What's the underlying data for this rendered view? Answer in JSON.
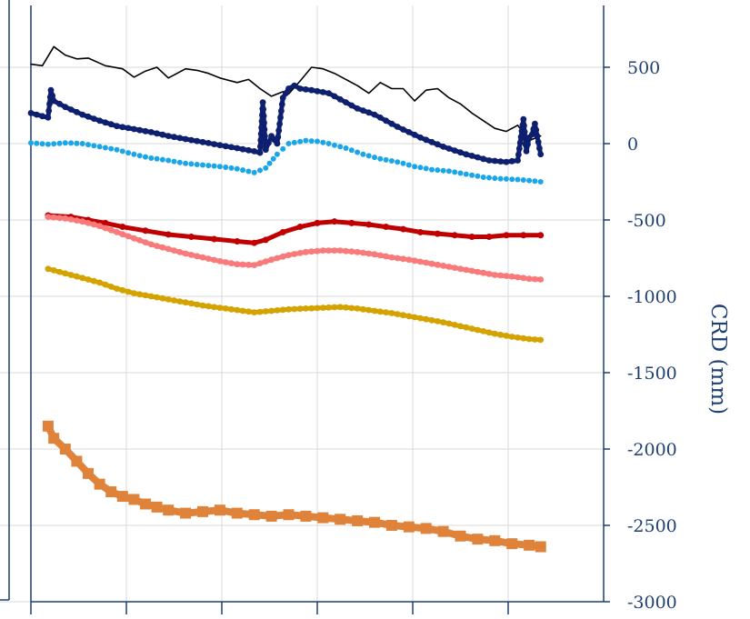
{
  "chart_data": {
    "type": "line",
    "title": "",
    "xlabel": "",
    "ylabel": "CRD (mm)",
    "ylim": [
      -3000,
      900
    ],
    "y_axis_side": "right",
    "y_ticks": [
      500,
      0,
      -500,
      -1000,
      -1500,
      -2000,
      -2500,
      -3000
    ],
    "y_tick_labels": [
      "500",
      "0",
      "-500",
      "-1000",
      "-1500",
      "-2000",
      "-2500",
      "-3000"
    ],
    "x_range": [
      0,
      1
    ],
    "x_ticks": [
      0,
      0.1667,
      0.3333,
      0.5,
      0.6667,
      0.8333
    ],
    "grid": true,
    "legend": "none",
    "series": [
      {
        "color": "#000000",
        "style": "thin-line",
        "x": [
          0,
          0.02,
          0.04,
          0.06,
          0.08,
          0.1,
          0.13,
          0.16,
          0.18,
          0.2,
          0.22,
          0.24,
          0.27,
          0.29,
          0.31,
          0.33,
          0.36,
          0.38,
          0.4,
          0.42,
          0.44,
          0.45,
          0.47,
          0.49,
          0.51,
          0.53,
          0.55,
          0.57,
          0.59,
          0.61,
          0.63,
          0.65,
          0.67,
          0.69,
          0.71,
          0.73,
          0.75,
          0.77,
          0.79,
          0.81,
          0.83,
          0.85,
          0.87,
          0.89
        ],
        "y": [
          520,
          510,
          635,
          580,
          555,
          560,
          510,
          490,
          435,
          475,
          500,
          430,
          490,
          480,
          460,
          430,
          400,
          420,
          360,
          310,
          340,
          325,
          410,
          500,
          490,
          460,
          420,
          380,
          330,
          400,
          360,
          360,
          280,
          350,
          360,
          300,
          260,
          200,
          150,
          100,
          80,
          120,
          20,
          50
        ]
      },
      {
        "color": "#0d1f6e",
        "style": "thick-dots",
        "x": [
          0,
          0.03,
          0.035,
          0.04,
          0.06,
          0.09,
          0.12,
          0.15,
          0.18,
          0.21,
          0.24,
          0.27,
          0.3,
          0.33,
          0.36,
          0.39,
          0.4,
          0.405,
          0.41,
          0.42,
          0.43,
          0.44,
          0.45,
          0.46,
          0.47,
          0.49,
          0.52,
          0.55,
          0.57,
          0.6,
          0.64,
          0.68,
          0.72,
          0.76,
          0.8,
          0.83,
          0.85,
          0.86,
          0.865,
          0.87,
          0.875,
          0.88,
          0.89
        ],
        "y": [
          200,
          170,
          350,
          280,
          240,
          190,
          150,
          115,
          95,
          75,
          50,
          30,
          10,
          -10,
          -30,
          -50,
          -60,
          270,
          -40,
          50,
          0,
          300,
          360,
          380,
          360,
          350,
          330,
          270,
          230,
          190,
          110,
          40,
          -20,
          -70,
          -110,
          -120,
          -110,
          160,
          -50,
          40,
          60,
          130,
          -70
        ]
      },
      {
        "color": "#1aa6e8",
        "style": "dots",
        "x": [
          0,
          0.03,
          0.06,
          0.09,
          0.12,
          0.15,
          0.18,
          0.21,
          0.24,
          0.27,
          0.3,
          0.33,
          0.36,
          0.39,
          0.41,
          0.43,
          0.45,
          0.48,
          0.5,
          0.52,
          0.55,
          0.58,
          0.61,
          0.64,
          0.67,
          0.7,
          0.73,
          0.76,
          0.79,
          0.82,
          0.85,
          0.88,
          0.89
        ],
        "y": [
          5,
          -5,
          5,
          0,
          -20,
          -40,
          -70,
          -95,
          -110,
          -130,
          -140,
          -150,
          -165,
          -190,
          -160,
          -70,
          0,
          20,
          15,
          0,
          -30,
          -70,
          -100,
          -120,
          -150,
          -170,
          -180,
          -200,
          -220,
          -230,
          -235,
          -245,
          -250
        ]
      },
      {
        "color": "#c00000",
        "style": "thick-jagged",
        "x": [
          0.03,
          0.07,
          0.1,
          0.13,
          0.16,
          0.2,
          0.24,
          0.28,
          0.32,
          0.36,
          0.39,
          0.41,
          0.44,
          0.47,
          0.5,
          0.53,
          0.56,
          0.59,
          0.62,
          0.65,
          0.68,
          0.71,
          0.74,
          0.77,
          0.8,
          0.83,
          0.86,
          0.89
        ],
        "y": [
          -470,
          -480,
          -500,
          -520,
          -545,
          -570,
          -595,
          -610,
          -625,
          -640,
          -650,
          -630,
          -580,
          -545,
          -520,
          -510,
          -520,
          -530,
          -545,
          -560,
          -580,
          -590,
          -600,
          -610,
          -610,
          -600,
          -600,
          -600
        ]
      },
      {
        "color": "#f97a7a",
        "style": "thick-dots",
        "x": [
          0.03,
          0.06,
          0.09,
          0.12,
          0.15,
          0.18,
          0.21,
          0.24,
          0.27,
          0.3,
          0.33,
          0.36,
          0.39,
          0.42,
          0.45,
          0.48,
          0.51,
          0.54,
          0.57,
          0.6,
          0.63,
          0.66,
          0.69,
          0.72,
          0.75,
          0.78,
          0.81,
          0.84,
          0.87,
          0.89
        ],
        "y": [
          -480,
          -490,
          -510,
          -540,
          -580,
          -620,
          -660,
          -690,
          -720,
          -745,
          -770,
          -790,
          -795,
          -760,
          -730,
          -710,
          -700,
          -700,
          -710,
          -725,
          -745,
          -760,
          -780,
          -800,
          -820,
          -840,
          -860,
          -870,
          -885,
          -890
        ]
      },
      {
        "color": "#d4a300",
        "style": "thick-dots",
        "x": [
          0.03,
          0.06,
          0.09,
          0.12,
          0.15,
          0.18,
          0.21,
          0.24,
          0.27,
          0.3,
          0.33,
          0.36,
          0.39,
          0.42,
          0.45,
          0.48,
          0.51,
          0.54,
          0.57,
          0.6,
          0.63,
          0.66,
          0.69,
          0.72,
          0.75,
          0.78,
          0.81,
          0.84,
          0.87,
          0.89
        ],
        "y": [
          -820,
          -850,
          -880,
          -910,
          -950,
          -980,
          -1000,
          -1020,
          -1040,
          -1060,
          -1075,
          -1090,
          -1105,
          -1095,
          -1085,
          -1080,
          -1075,
          -1070,
          -1080,
          -1095,
          -1110,
          -1130,
          -1150,
          -1170,
          -1195,
          -1220,
          -1245,
          -1265,
          -1280,
          -1285
        ]
      },
      {
        "color": "#e0833a",
        "style": "thick-squares",
        "x": [
          0.03,
          0.04,
          0.06,
          0.08,
          0.1,
          0.12,
          0.14,
          0.16,
          0.18,
          0.2,
          0.22,
          0.24,
          0.27,
          0.3,
          0.33,
          0.36,
          0.39,
          0.42,
          0.45,
          0.48,
          0.51,
          0.54,
          0.57,
          0.6,
          0.63,
          0.66,
          0.69,
          0.72,
          0.75,
          0.78,
          0.81,
          0.84,
          0.87,
          0.89
        ],
        "y": [
          -1850,
          -1930,
          -2000,
          -2080,
          -2160,
          -2230,
          -2280,
          -2310,
          -2330,
          -2360,
          -2380,
          -2400,
          -2420,
          -2410,
          -2400,
          -2420,
          -2430,
          -2440,
          -2430,
          -2440,
          -2450,
          -2460,
          -2470,
          -2480,
          -2500,
          -2510,
          -2520,
          -2540,
          -2570,
          -2590,
          -2600,
          -2620,
          -2630,
          -2640
        ]
      }
    ]
  }
}
